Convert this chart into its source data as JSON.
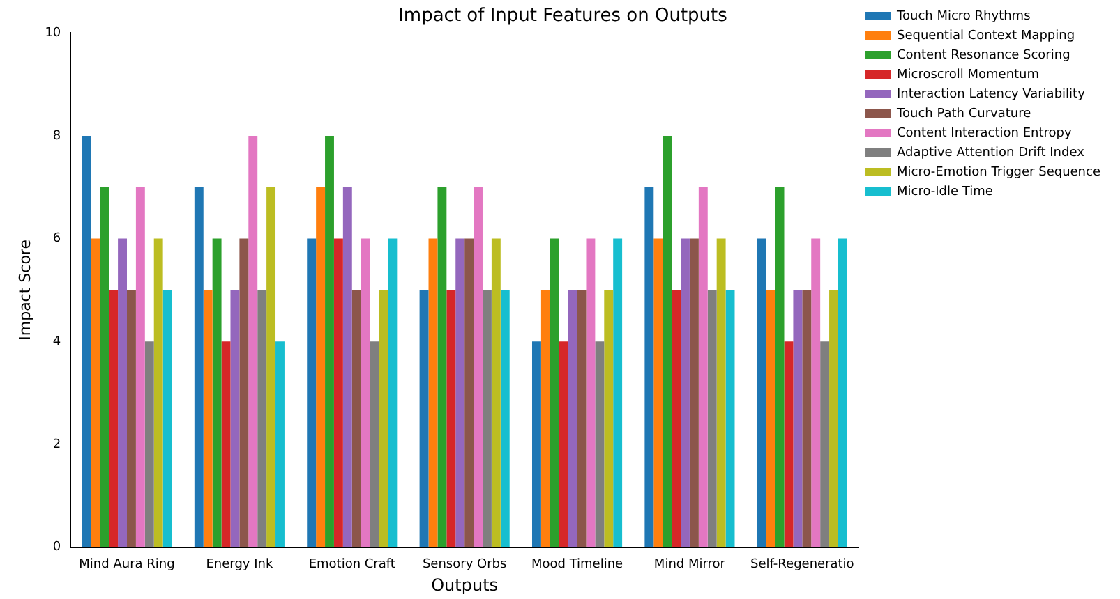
{
  "chart_data": {
    "type": "bar",
    "title": "Impact of Input Features on Outputs",
    "xlabel": "Outputs",
    "ylabel": "Impact Score",
    "categories": [
      "Mind Aura Ring",
      "Energy Ink",
      "Emotion Craft",
      "Sensory Orbs",
      "Mood Timeline",
      "Mind Mirror",
      "Self-Regeneratio"
    ],
    "series": [
      {
        "name": "Touch Micro Rhythms",
        "color": "#1f77b4",
        "values": [
          8,
          7,
          6,
          5,
          4,
          7,
          6
        ]
      },
      {
        "name": "Sequential Context Mapping",
        "color": "#ff7f0e",
        "values": [
          6,
          5,
          7,
          6,
          5,
          6,
          5
        ]
      },
      {
        "name": "Content Resonance Scoring",
        "color": "#2ca02c",
        "values": [
          7,
          6,
          8,
          7,
          6,
          8,
          7
        ]
      },
      {
        "name": "Microscroll Momentum",
        "color": "#d62728",
        "values": [
          5,
          4,
          6,
          5,
          4,
          5,
          4
        ]
      },
      {
        "name": "Interaction Latency Variability",
        "color": "#9467bd",
        "values": [
          6,
          5,
          7,
          6,
          5,
          6,
          5
        ]
      },
      {
        "name": "Touch Path Curvature",
        "color": "#8c564b",
        "values": [
          5,
          6,
          5,
          6,
          5,
          6,
          5
        ]
      },
      {
        "name": "Content Interaction Entropy",
        "color": "#e377c2",
        "values": [
          7,
          8,
          6,
          7,
          6,
          7,
          6
        ]
      },
      {
        "name": "Adaptive Attention Drift Index",
        "color": "#7f7f7f",
        "values": [
          4,
          5,
          4,
          5,
          4,
          5,
          4
        ]
      },
      {
        "name": "Micro-Emotion Trigger Sequence",
        "color": "#bcbd22",
        "values": [
          6,
          7,
          5,
          6,
          5,
          6,
          5
        ]
      },
      {
        "name": "Micro-Idle Time",
        "color": "#17becf",
        "values": [
          5,
          4,
          6,
          5,
          6,
          5,
          6
        ]
      }
    ],
    "ylim": [
      0,
      10
    ],
    "yticks": [
      0,
      2,
      4,
      6,
      8,
      10
    ],
    "grid": false,
    "legend": "top right"
  }
}
